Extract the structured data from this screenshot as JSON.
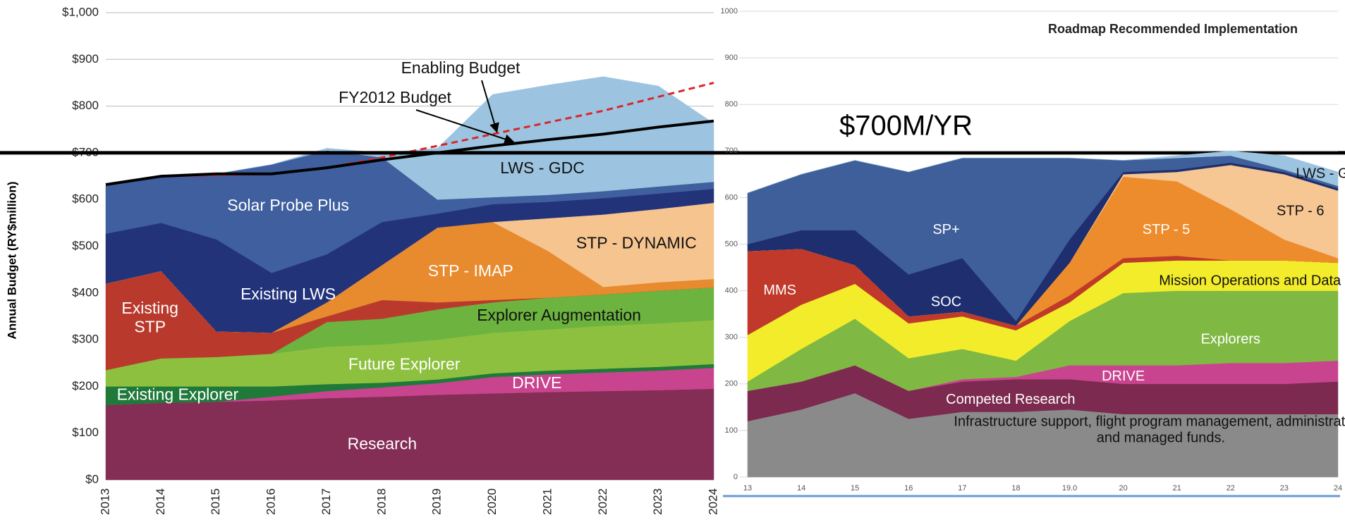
{
  "chart_data": [
    {
      "type": "stacked_area",
      "y_axis_label": "Annual Budget (RY$million)",
      "x": [
        2013,
        2014,
        2015,
        2016,
        2017,
        2018,
        2019,
        2020,
        2021,
        2022,
        2023,
        2024
      ],
      "xlim": [
        2013,
        2024
      ],
      "ylim": [
        0,
        1000
      ],
      "yticks": [
        {
          "value": 0,
          "label": "$0"
        },
        {
          "value": 100,
          "label": "$100"
        },
        {
          "value": 200,
          "label": "$200"
        },
        {
          "value": 300,
          "label": "$300"
        },
        {
          "value": 400,
          "label": "$400"
        },
        {
          "value": 500,
          "label": "$500"
        },
        {
          "value": 600,
          "label": "$600"
        },
        {
          "value": 700,
          "label": "$700"
        },
        {
          "value": 800,
          "label": "$800"
        },
        {
          "value": 900,
          "label": "$900"
        },
        {
          "value": 1000,
          "label": "$1,000"
        }
      ],
      "grid": true,
      "reference_line": {
        "value": 700,
        "label": "$700M/YR"
      },
      "series": [
        {
          "name": "Research",
          "color": "#842d55",
          "values": [
            160,
            165,
            167,
            170,
            175,
            178,
            182,
            185,
            188,
            190,
            192,
            195
          ]
        },
        {
          "name": "DRIVE",
          "color": "#c9448f",
          "values": [
            0,
            0,
            0,
            8,
            15,
            20,
            25,
            35,
            38,
            40,
            42,
            45
          ]
        },
        {
          "name": "Existing Explorer",
          "color": "#1f7a3a",
          "values": [
            40,
            35,
            33,
            22,
            15,
            10,
            8,
            8,
            8,
            8,
            8,
            8
          ]
        },
        {
          "name": "Future Explorer",
          "color": "#8dc03f",
          "values": [
            35,
            60,
            63,
            70,
            80,
            82,
            85,
            87,
            88,
            92,
            93,
            94
          ]
        },
        {
          "name": "Explorer Augmentation",
          "color": "#6cb33f",
          "values": [
            0,
            0,
            0,
            0,
            53,
            55,
            65,
            65,
            68,
            67,
            70,
            70
          ]
        },
        {
          "name": "Existing STP",
          "color": "#b93a2d",
          "values": [
            185,
            187,
            55,
            45,
            12,
            40,
            15,
            5,
            0,
            0,
            0,
            0
          ]
        },
        {
          "name": "STP - IMAP",
          "color": "#e88a2e",
          "values": [
            0,
            0,
            0,
            0,
            30,
            75,
            160,
            167,
            100,
            16,
            18,
            18
          ]
        },
        {
          "name": "STP - DYNAMIC",
          "color": "#f5c48f",
          "values": [
            0,
            0,
            0,
            0,
            0,
            0,
            0,
            0,
            70,
            155,
            157,
            163
          ]
        },
        {
          "name": "Existing LWS",
          "color": "#22337a",
          "values": [
            107,
            103,
            197,
            128,
            103,
            92,
            30,
            38,
            35,
            35,
            33,
            30
          ]
        },
        {
          "name": "Solar Probe Plus",
          "color": "#3f5f9e",
          "values": [
            103,
            100,
            140,
            232,
            222,
            138,
            30,
            15,
            15,
            15,
            15,
            15
          ]
        },
        {
          "name": "LWS - GDC",
          "color": "#9cc4e0",
          "values": [
            0,
            0,
            0,
            0,
            5,
            10,
            110,
            220,
            235,
            245,
            215,
            125
          ]
        }
      ],
      "lines": [
        {
          "name": "Enabling Budget",
          "color": "#d9262b",
          "dashed": true,
          "values": [
            632,
            650,
            652,
            655,
            668,
            690,
            715,
            740,
            765,
            790,
            820,
            850
          ]
        },
        {
          "name": "FY2012 Budget",
          "color": "#000000",
          "dashed": false,
          "values": [
            632,
            650,
            655,
            655,
            668,
            685,
            700,
            715,
            728,
            740,
            755,
            768
          ]
        }
      ]
    },
    {
      "type": "stacked_area",
      "title": "Roadmap Recommended Implementation",
      "categories": [
        "13",
        "14",
        "15",
        "16",
        "17",
        "18",
        "19.0",
        "20",
        "21",
        "22",
        "23",
        "24"
      ],
      "ylim": [
        0,
        1000
      ],
      "yticks": [
        0,
        100,
        200,
        300,
        400,
        500,
        600,
        700,
        800,
        900,
        1000
      ],
      "grid": true,
      "series": [
        {
          "name": "Infrastructure support, flight program management, administration, and managed funds.",
          "color": "#8a8a8a",
          "values": [
            120,
            145,
            180,
            125,
            140,
            140,
            145,
            135,
            135,
            135,
            135,
            135
          ]
        },
        {
          "name": "Competed Research",
          "color": "#7c2a4f",
          "values": [
            65,
            60,
            60,
            60,
            65,
            70,
            65,
            65,
            65,
            65,
            65,
            70
          ]
        },
        {
          "name": "DRIVE",
          "color": "#c9448f",
          "values": [
            0,
            0,
            0,
            0,
            5,
            5,
            30,
            40,
            40,
            45,
            45,
            45
          ]
        },
        {
          "name": "Explorers",
          "color": "#7fb843",
          "values": [
            20,
            70,
            100,
            70,
            65,
            35,
            95,
            155,
            160,
            155,
            155,
            150
          ]
        },
        {
          "name": "Mission Operations and Data Services",
          "color": "#f2ec2a",
          "values": [
            100,
            95,
            75,
            75,
            70,
            65,
            40,
            65,
            65,
            65,
            65,
            60
          ]
        },
        {
          "name": "MMS",
          "color": "#c0392b",
          "values": [
            180,
            120,
            40,
            15,
            10,
            10,
            15,
            10,
            10,
            0,
            0,
            0
          ]
        },
        {
          "name": "STP - 5",
          "color": "#ed8c2c",
          "values": [
            0,
            0,
            0,
            0,
            0,
            0,
            70,
            175,
            160,
            110,
            45,
            10
          ]
        },
        {
          "name": "STP - 6",
          "color": "#f6c693",
          "values": [
            0,
            0,
            0,
            0,
            0,
            0,
            0,
            5,
            20,
            95,
            140,
            145
          ]
        },
        {
          "name": "SOC",
          "color": "#1e2e6e",
          "values": [
            15,
            40,
            75,
            90,
            115,
            10,
            50,
            5,
            5,
            5,
            5,
            5
          ]
        },
        {
          "name": "SP+",
          "color": "#3e5f9a",
          "values": [
            110,
            120,
            150,
            220,
            215,
            350,
            175,
            25,
            25,
            15,
            5,
            5
          ]
        },
        {
          "name": "LWS - GDC",
          "color": "#9cc4e0",
          "values": [
            0,
            0,
            0,
            0,
            0,
            0,
            0,
            0,
            5,
            10,
            30,
            30
          ]
        }
      ]
    }
  ]
}
